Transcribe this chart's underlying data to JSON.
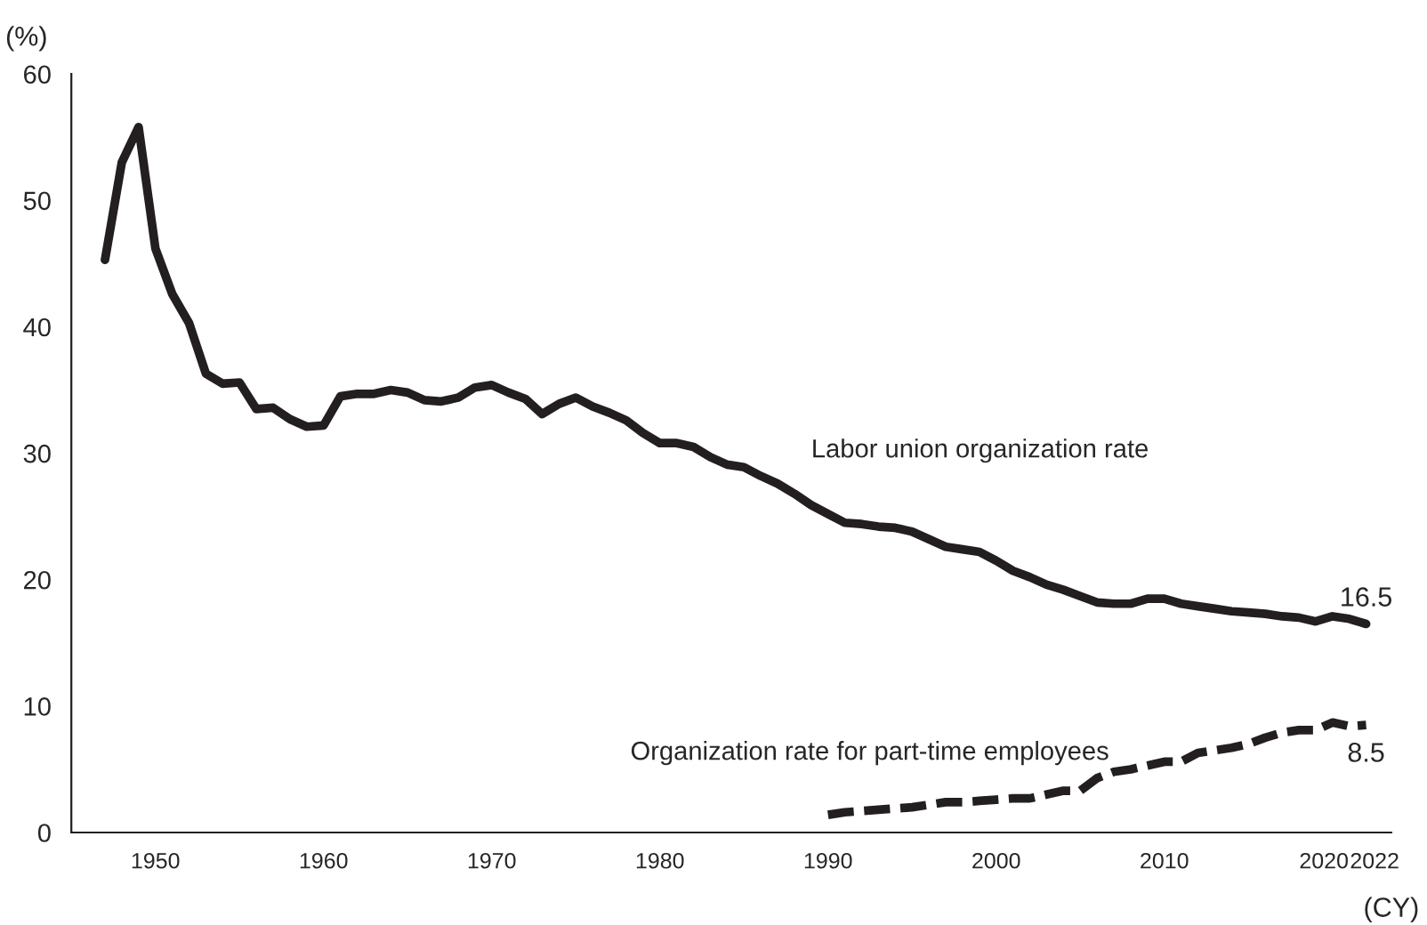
{
  "chart_data": {
    "type": "line",
    "ylabel": "(%)",
    "xlabel": "(CY)",
    "xlim": [
      1945,
      2023.5
    ],
    "ylim": [
      0,
      60
    ],
    "xticks": [
      1950,
      1960,
      1970,
      1980,
      1990,
      2000,
      2010,
      2020,
      2022
    ],
    "yticks": [
      0,
      10,
      20,
      30,
      40,
      50,
      60
    ],
    "grid": false,
    "legend": false,
    "series": [
      {
        "name": "Labor union organization rate",
        "color": "#231f20",
        "line_style": "solid",
        "x": [
          1947,
          1948,
          1949,
          1950,
          1951,
          1952,
          1953,
          1954,
          1955,
          1956,
          1957,
          1958,
          1959,
          1960,
          1961,
          1962,
          1963,
          1964,
          1965,
          1966,
          1967,
          1968,
          1969,
          1970,
          1971,
          1972,
          1973,
          1974,
          1975,
          1976,
          1977,
          1978,
          1979,
          1980,
          1981,
          1982,
          1983,
          1984,
          1985,
          1986,
          1987,
          1988,
          1989,
          1990,
          1991,
          1992,
          1993,
          1994,
          1995,
          1996,
          1997,
          1998,
          1999,
          2000,
          2001,
          2002,
          2003,
          2004,
          2005,
          2006,
          2007,
          2008,
          2009,
          2010,
          2011,
          2012,
          2013,
          2014,
          2015,
          2016,
          2017,
          2018,
          2019,
          2020,
          2021,
          2022
        ],
        "values": [
          45.3,
          53.0,
          55.8,
          46.2,
          42.6,
          40.3,
          36.3,
          35.5,
          35.6,
          33.5,
          33.6,
          32.7,
          32.1,
          32.2,
          34.5,
          34.7,
          34.7,
          35.0,
          34.8,
          34.2,
          34.1,
          34.4,
          35.2,
          35.4,
          34.8,
          34.3,
          33.1,
          33.9,
          34.4,
          33.7,
          33.2,
          32.6,
          31.6,
          30.8,
          30.8,
          30.5,
          29.7,
          29.1,
          28.9,
          28.2,
          27.6,
          26.8,
          25.9,
          25.2,
          24.5,
          24.4,
          24.2,
          24.1,
          23.8,
          23.2,
          22.6,
          22.4,
          22.2,
          21.5,
          20.7,
          20.2,
          19.6,
          19.2,
          18.7,
          18.2,
          18.1,
          18.1,
          18.5,
          18.5,
          18.1,
          17.9,
          17.7,
          17.5,
          17.4,
          17.3,
          17.1,
          17.0,
          16.7,
          17.1,
          16.9,
          16.5
        ]
      },
      {
        "name": "Organization rate for part-time employees",
        "color": "#231f20",
        "line_style": "dashed",
        "x": [
          1990,
          1991,
          1992,
          1993,
          1994,
          1995,
          1996,
          1997,
          1998,
          1999,
          2000,
          2001,
          2002,
          2003,
          2004,
          2005,
          2006,
          2007,
          2008,
          2009,
          2010,
          2011,
          2012,
          2013,
          2014,
          2015,
          2016,
          2017,
          2018,
          2019,
          2020,
          2021,
          2022
        ],
        "values": [
          1.4,
          1.6,
          1.7,
          1.8,
          1.9,
          2.0,
          2.2,
          2.4,
          2.4,
          2.5,
          2.6,
          2.7,
          2.7,
          3.0,
          3.3,
          3.3,
          4.3,
          4.8,
          5.0,
          5.3,
          5.6,
          5.6,
          6.3,
          6.5,
          6.7,
          7.0,
          7.5,
          7.9,
          8.1,
          8.1,
          8.7,
          8.4,
          8.5
        ]
      }
    ],
    "annotations": [
      {
        "text": "16.5",
        "x": 2022,
        "y": 16.5
      },
      {
        "text": "8.5",
        "x": 2022,
        "y": 8.5
      }
    ]
  }
}
